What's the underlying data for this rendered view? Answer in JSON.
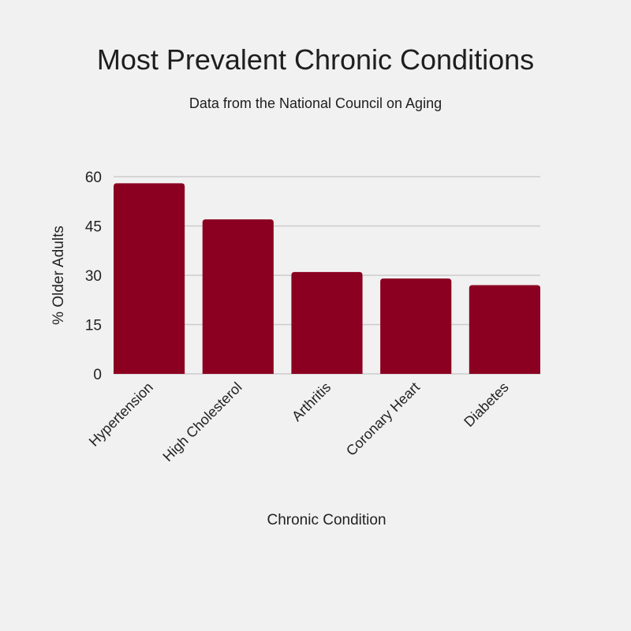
{
  "chart_data": {
    "type": "bar",
    "title": "Most Prevalent Chronic Conditions",
    "subtitle": "Data from the National Council on Aging",
    "categories": [
      "Hypertension",
      "High Cholesterol",
      "Arthritis",
      "Coronary Heart",
      "Diabetes"
    ],
    "values": [
      58,
      47,
      31,
      29,
      27
    ],
    "xlabel": "Chronic Condition",
    "ylabel": "% Older Adults",
    "ylim": [
      0,
      60
    ],
    "yticks": [
      0,
      15,
      30,
      45,
      60
    ],
    "grid": true,
    "legend": "none",
    "bar_color": "#8b0020",
    "grid_color": "#cccccc",
    "background": "#f1f1f1"
  }
}
